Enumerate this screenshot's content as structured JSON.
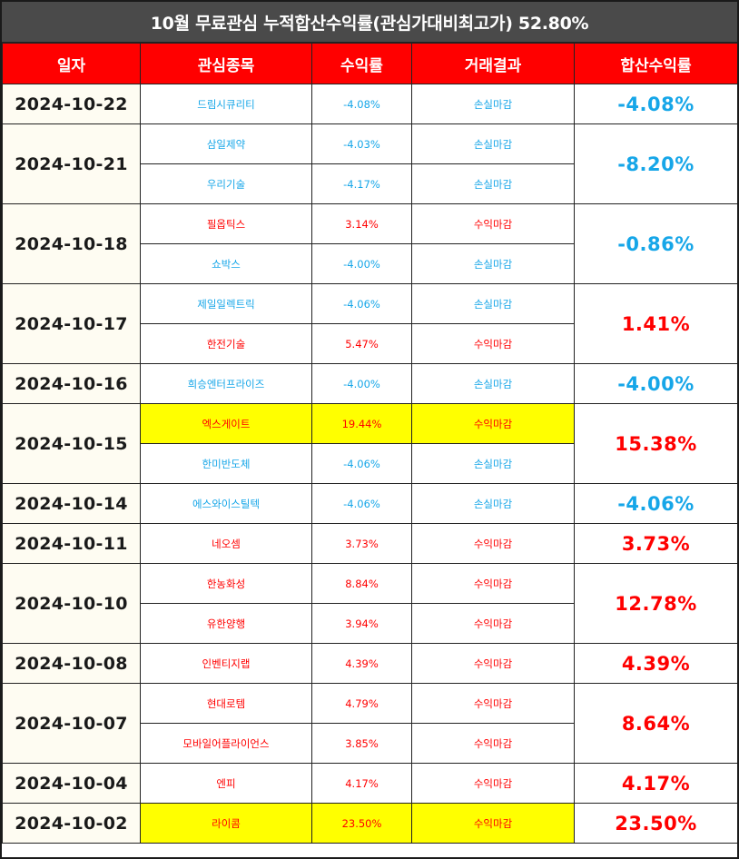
{
  "title": "10월 무료관심 누적합산수익률(관심가대비최고가) 52.80%",
  "colors": {
    "header_bg": "#ff0000",
    "title_bg": "#4a4a4a",
    "loss": "#16a6e8",
    "gain": "#ff0000",
    "highlight": "#ffff00"
  },
  "headers": [
    "일자",
    "관심종목",
    "수익률",
    "거래결과",
    "합산수익률"
  ],
  "groups": [
    {
      "date": "2024-10-22",
      "total": "-4.08%",
      "total_kind": "loss",
      "rows": [
        {
          "stock": "드림시큐리티",
          "rate": "-4.08%",
          "result": "손실마감",
          "kind": "loss",
          "highlight": false
        }
      ]
    },
    {
      "date": "2024-10-21",
      "total": "-8.20%",
      "total_kind": "loss",
      "rows": [
        {
          "stock": "삼일제약",
          "rate": "-4.03%",
          "result": "손실마감",
          "kind": "loss",
          "highlight": false
        },
        {
          "stock": "우리기술",
          "rate": "-4.17%",
          "result": "손실마감",
          "kind": "loss",
          "highlight": false
        }
      ]
    },
    {
      "date": "2024-10-18",
      "total": "-0.86%",
      "total_kind": "loss",
      "rows": [
        {
          "stock": "필옵틱스",
          "rate": "3.14%",
          "result": "수익마감",
          "kind": "gain",
          "highlight": false
        },
        {
          "stock": "쇼박스",
          "rate": "-4.00%",
          "result": "손실마감",
          "kind": "loss",
          "highlight": false
        }
      ]
    },
    {
      "date": "2024-10-17",
      "total": "1.41%",
      "total_kind": "gain",
      "rows": [
        {
          "stock": "제일일렉트릭",
          "rate": "-4.06%",
          "result": "손실마감",
          "kind": "loss",
          "highlight": false
        },
        {
          "stock": "한전기술",
          "rate": "5.47%",
          "result": "수익마감",
          "kind": "gain",
          "highlight": false
        }
      ]
    },
    {
      "date": "2024-10-16",
      "total": "-4.00%",
      "total_kind": "loss",
      "rows": [
        {
          "stock": "희승엔터프라이즈",
          "rate": "-4.00%",
          "result": "손실마감",
          "kind": "loss",
          "highlight": false
        }
      ]
    },
    {
      "date": "2024-10-15",
      "total": "15.38%",
      "total_kind": "gain",
      "rows": [
        {
          "stock": "엑스게이트",
          "rate": "19.44%",
          "result": "수익마감",
          "kind": "gain",
          "highlight": true
        },
        {
          "stock": "한미반도체",
          "rate": "-4.06%",
          "result": "손실마감",
          "kind": "loss",
          "highlight": false
        }
      ]
    },
    {
      "date": "2024-10-14",
      "total": "-4.06%",
      "total_kind": "loss",
      "rows": [
        {
          "stock": "에스와이스틸텍",
          "rate": "-4.06%",
          "result": "손실마감",
          "kind": "loss",
          "highlight": false
        }
      ]
    },
    {
      "date": "2024-10-11",
      "total": "3.73%",
      "total_kind": "gain",
      "rows": [
        {
          "stock": "네오셈",
          "rate": "3.73%",
          "result": "수익마감",
          "kind": "gain",
          "highlight": false
        }
      ]
    },
    {
      "date": "2024-10-10",
      "total": "12.78%",
      "total_kind": "gain",
      "rows": [
        {
          "stock": "한농화성",
          "rate": "8.84%",
          "result": "수익마감",
          "kind": "gain",
          "highlight": false
        },
        {
          "stock": "유한양행",
          "rate": "3.94%",
          "result": "수익마감",
          "kind": "gain",
          "highlight": false
        }
      ]
    },
    {
      "date": "2024-10-08",
      "total": "4.39%",
      "total_kind": "gain",
      "rows": [
        {
          "stock": "인벤티지랩",
          "rate": "4.39%",
          "result": "수익마감",
          "kind": "gain",
          "highlight": false
        }
      ]
    },
    {
      "date": "2024-10-07",
      "total": "8.64%",
      "total_kind": "gain",
      "rows": [
        {
          "stock": "현대로템",
          "rate": "4.79%",
          "result": "수익마감",
          "kind": "gain",
          "highlight": false
        },
        {
          "stock": "모바일어플라이언스",
          "rate": "3.85%",
          "result": "수익마감",
          "kind": "gain",
          "highlight": false
        }
      ]
    },
    {
      "date": "2024-10-04",
      "total": "4.17%",
      "total_kind": "gain",
      "rows": [
        {
          "stock": "엔피",
          "rate": "4.17%",
          "result": "수익마감",
          "kind": "gain",
          "highlight": false
        }
      ]
    },
    {
      "date": "2024-10-02",
      "total": "23.50%",
      "total_kind": "gain",
      "rows": [
        {
          "stock": "라이콤",
          "rate": "23.50%",
          "result": "수익마감",
          "kind": "gain",
          "highlight": true
        }
      ]
    }
  ]
}
